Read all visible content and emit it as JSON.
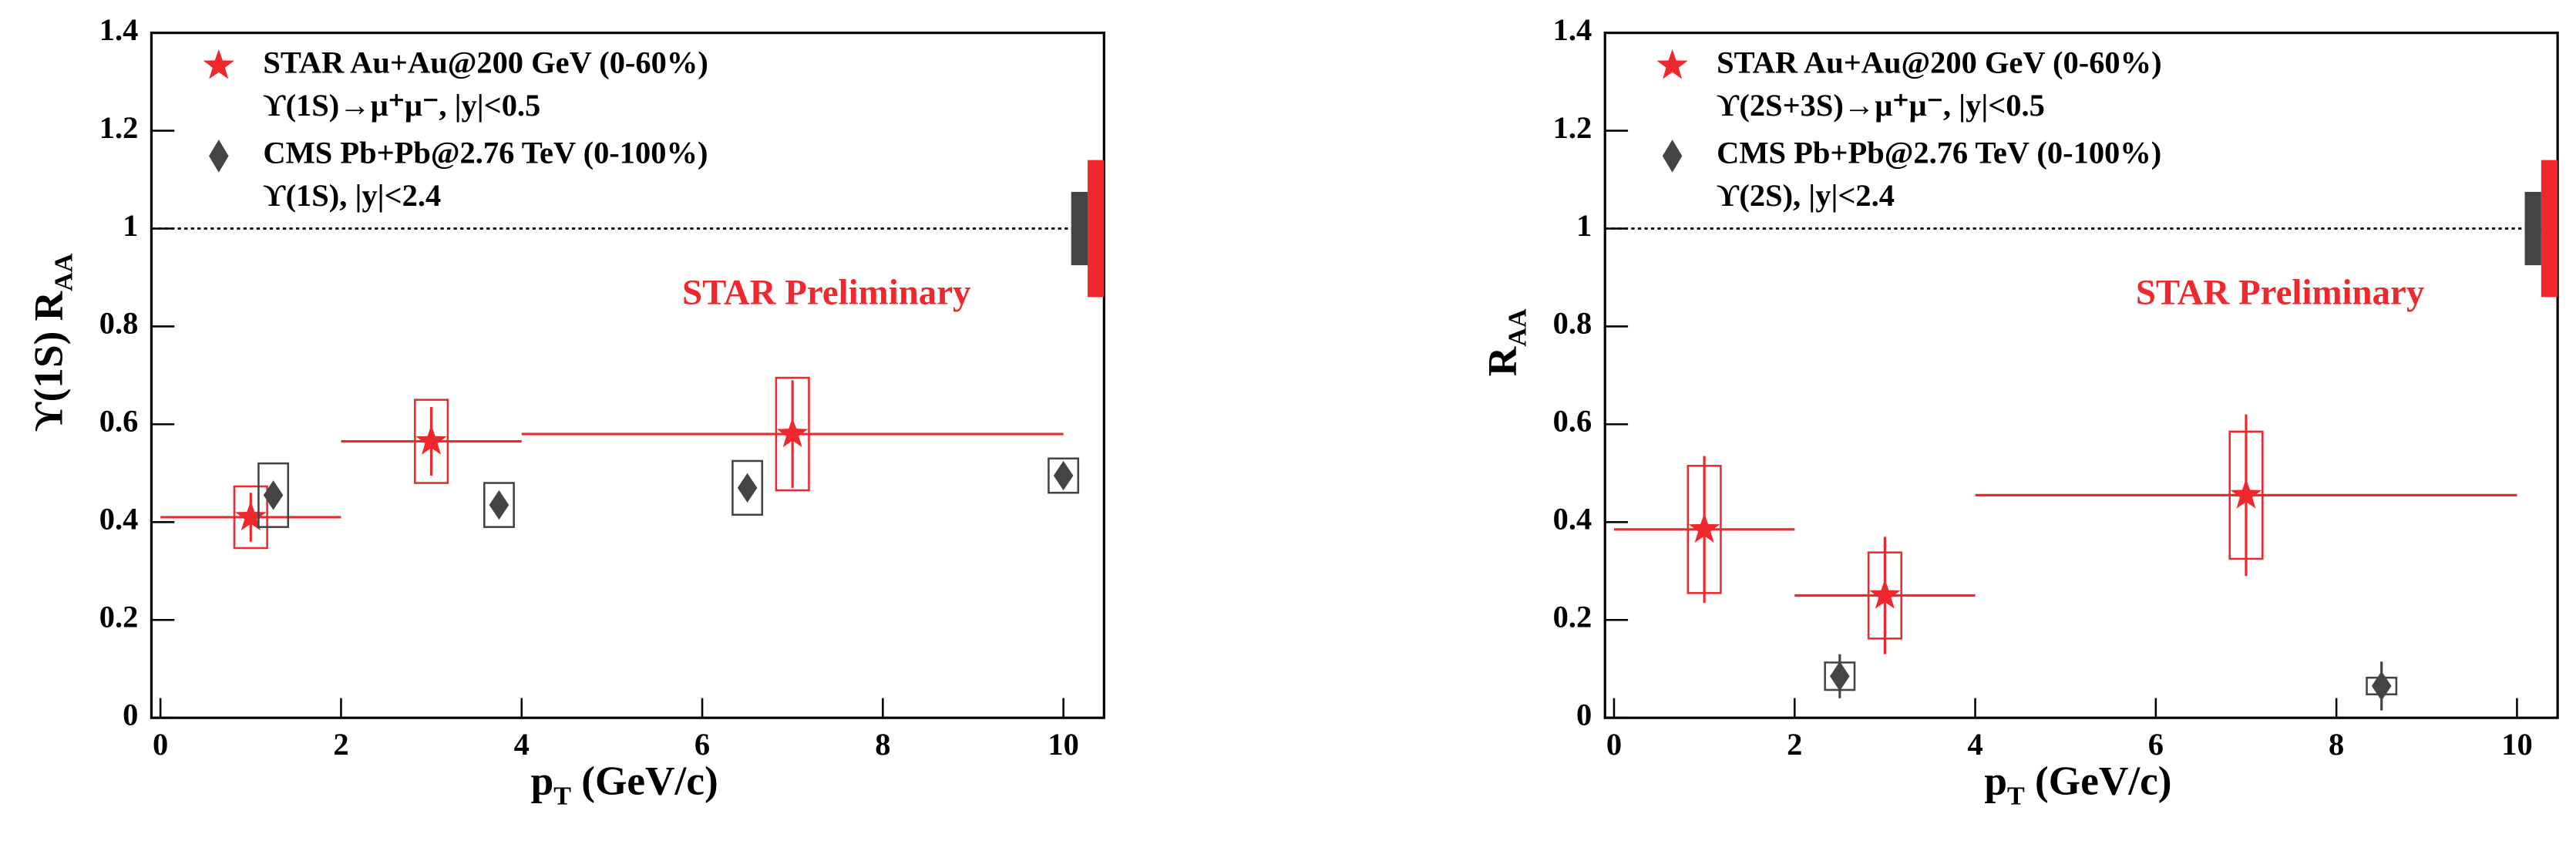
{
  "chart_data": [
    {
      "type": "scatter",
      "y_label": "ϒ(1S) R",
      "y_label_sub": "AA",
      "x_label": "p",
      "x_label_sub": "T",
      "x_label_unit": " (GeV/c)",
      "annotation": "STAR Preliminary",
      "xlim": [
        -0.1,
        10.45
      ],
      "ylim": [
        0,
        1.4
      ],
      "xticks": [
        0,
        2,
        4,
        6,
        8,
        10
      ],
      "yticks": [
        0,
        0.2,
        0.4,
        0.6,
        0.8,
        1,
        1.2,
        1.4
      ],
      "ref_line": 1,
      "series": [
        {
          "name": "STAR Au+Au@200 GeV (0-60%)",
          "detail": "ϒ(1S)→μ⁺μ⁻, |y|<0.5",
          "marker": "star",
          "color": "#f0282d",
          "x": [
            1,
            3,
            7
          ],
          "xerr": [
            1,
            1,
            3
          ],
          "values": [
            0.41,
            0.565,
            0.58
          ],
          "yerr": [
            0.05,
            0.07,
            0.11
          ],
          "sys": [
            0.063,
            0.085,
            0.115
          ],
          "global_sys": 0.14
        },
        {
          "name": "CMS Pb+Pb@2.76 TeV (0-100%)",
          "detail": "ϒ(1S), |y|<2.4",
          "marker": "diamond",
          "color": "#444444",
          "x": [
            1.25,
            3.75,
            6.5,
            10
          ],
          "values": [
            0.455,
            0.435,
            0.47,
            0.495
          ],
          "yerr": [
            0.02,
            0.02,
            0.02,
            0.02
          ],
          "sys": [
            0.065,
            0.045,
            0.055,
            0.035
          ],
          "global_sys": 0.075
        }
      ]
    },
    {
      "type": "scatter",
      "y_label": "R",
      "y_label_sub": "AA",
      "x_label": "p",
      "x_label_sub": "T",
      "x_label_unit": " (GeV/c)",
      "annotation": "STAR Preliminary",
      "xlim": [
        -0.1,
        10.45
      ],
      "ylim": [
        0,
        1.4
      ],
      "xticks": [
        0,
        2,
        4,
        6,
        8,
        10
      ],
      "yticks": [
        0,
        0.2,
        0.4,
        0.6,
        0.8,
        1,
        1.2,
        1.4
      ],
      "ref_line": 1,
      "series": [
        {
          "name": "STAR Au+Au@200 GeV (0-60%)",
          "detail": "ϒ(2S+3S)→μ⁺μ⁻, |y|<0.5",
          "marker": "star",
          "color": "#f0282d",
          "x": [
            1,
            3,
            7
          ],
          "xerr": [
            1,
            1,
            3
          ],
          "values": [
            0.385,
            0.25,
            0.455
          ],
          "yerr": [
            0.15,
            0.12,
            0.165
          ],
          "sys": [
            0.13,
            0.088,
            0.13
          ],
          "global_sys": 0.14
        },
        {
          "name": "CMS Pb+Pb@2.76 TeV (0-100%)",
          "detail": "ϒ(2S), |y|<2.4",
          "marker": "diamond",
          "color": "#444444",
          "x": [
            2.5,
            8.5
          ],
          "values": [
            0.085,
            0.065
          ],
          "yerr": [
            0.045,
            0.05
          ],
          "sys": [
            0.028,
            0.017
          ],
          "global_sys": 0.075
        }
      ]
    }
  ]
}
